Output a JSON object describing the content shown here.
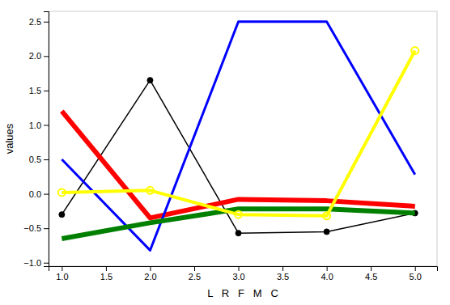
{
  "chart_data": {
    "type": "line",
    "xlabel": "L   R   F   M   C",
    "ylabel": "values",
    "x": [
      1,
      2,
      3,
      4,
      5
    ],
    "xlim": [
      0.85,
      5.25
    ],
    "ylim": [
      -1.05,
      2.65
    ],
    "xticks": [
      {
        "value": 1.0,
        "label": "1.0"
      },
      {
        "value": 1.5,
        "label": "1.5"
      },
      {
        "value": 2.0,
        "label": "2.0"
      },
      {
        "value": 2.5,
        "label": "2.5"
      },
      {
        "value": 3.0,
        "label": "3.0"
      },
      {
        "value": 3.5,
        "label": "3.5"
      },
      {
        "value": 4.0,
        "label": "4.0"
      },
      {
        "value": 4.5,
        "label": "4.5"
      },
      {
        "value": 5.0,
        "label": "5.0"
      }
    ],
    "yticks": [
      {
        "value": -1.0,
        "label": "−1.0"
      },
      {
        "value": -0.5,
        "label": "−0.5"
      },
      {
        "value": 0.0,
        "label": "0.0"
      },
      0.5,
      {
        "value": 1.0,
        "label": "1.0"
      },
      1.5,
      {
        "value": 2.0,
        "label": "2.0"
      },
      2.5
    ],
    "grid": false,
    "series": [
      {
        "color": "black",
        "marker": "circle",
        "values": [
          -0.3,
          1.65,
          -0.57,
          -0.55,
          -0.28
        ]
      },
      {
        "color": "red",
        "marker": "none",
        "values": [
          1.2,
          -0.35,
          -0.08,
          -0.1,
          -0.18
        ]
      },
      {
        "color": "blue",
        "marker": "none",
        "values": [
          0.5,
          -0.82,
          2.5,
          2.5,
          0.28
        ]
      },
      {
        "color": "green",
        "marker": "none",
        "values": [
          -0.65,
          -0.42,
          -0.22,
          -0.22,
          -0.28
        ]
      },
      {
        "color": "yellow",
        "marker": "open-circle",
        "values": [
          0.02,
          0.05,
          -0.3,
          -0.32,
          2.08
        ]
      }
    ]
  }
}
